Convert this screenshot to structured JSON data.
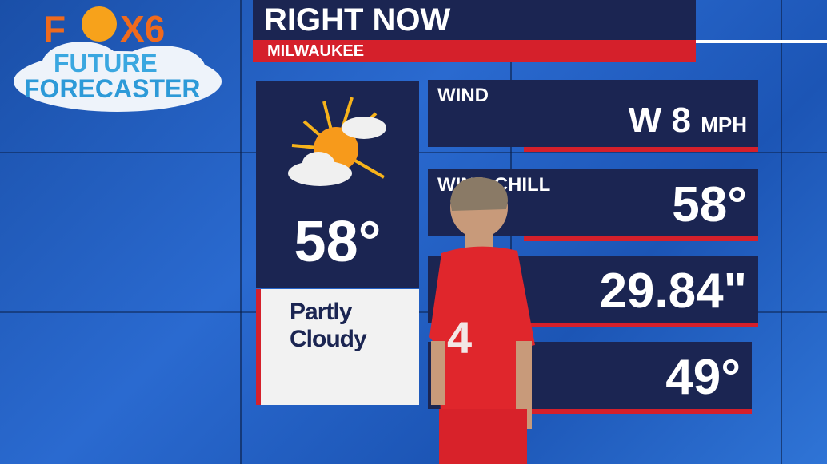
{
  "logo": {
    "text": "FOX6 FUTURE FORECASTER"
  },
  "header": {
    "title": "RIGHT NOW",
    "location": "MILWAUKEE"
  },
  "current": {
    "icon": "partly-cloudy-icon",
    "temperature": "58°",
    "condition_line1": "Partly",
    "condition_line2": "Cloudy"
  },
  "rows": [
    {
      "label": "WIND",
      "value": "W 8",
      "unit": "MPH"
    },
    {
      "label": "WIND CHILL",
      "value": "58°"
    },
    {
      "label": "",
      "value": "29.84\""
    },
    {
      "label": "",
      "value": "49°"
    }
  ],
  "colors": {
    "navy": "#1b2552",
    "red": "#d5202b"
  }
}
